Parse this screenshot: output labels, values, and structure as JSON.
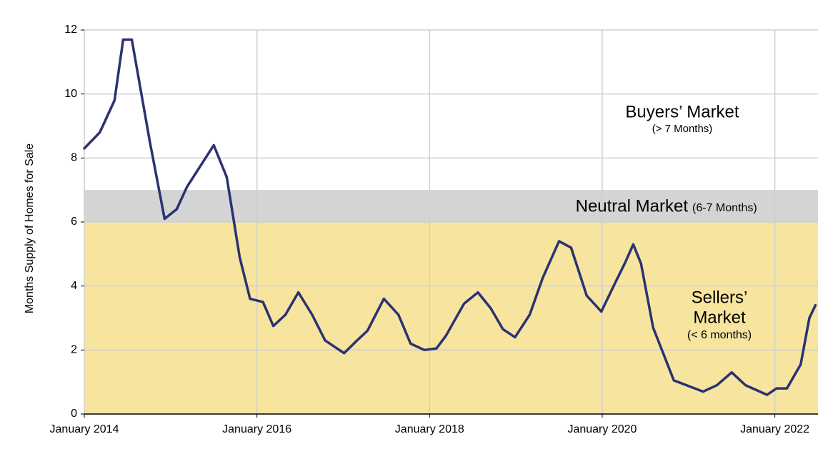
{
  "chart_data": {
    "type": "line",
    "y_label": "Months Supply of Homes for Sale",
    "x": [
      2014.0,
      2014.18,
      2014.35,
      2014.45,
      2014.55,
      2014.76,
      2014.93,
      2015.07,
      2015.19,
      2015.5,
      2015.65,
      2015.8,
      2015.92,
      2016.07,
      2016.19,
      2016.33,
      2016.48,
      2016.64,
      2016.79,
      2017.01,
      2017.16,
      2017.28,
      2017.47,
      2017.64,
      2017.78,
      2017.94,
      2018.08,
      2018.19,
      2018.4,
      2018.56,
      2018.71,
      2018.85,
      2018.99,
      2019.16,
      2019.31,
      2019.5,
      2019.64,
      2019.82,
      2019.99,
      2020.15,
      2020.26,
      2020.36,
      2020.45,
      2020.59,
      2020.83,
      2021.17,
      2021.33,
      2021.5,
      2021.66,
      2021.91,
      2022.02,
      2022.14,
      2022.3,
      2022.4,
      2022.47
    ],
    "series": [
      {
        "color": "#2b3270",
        "values": [
          8.3,
          8.8,
          9.8,
          11.7,
          11.7,
          8.5,
          6.1,
          6.4,
          7.1,
          8.4,
          7.4,
          4.9,
          3.6,
          3.5,
          2.75,
          3.1,
          3.8,
          3.1,
          2.3,
          1.9,
          2.3,
          2.6,
          3.6,
          3.1,
          2.2,
          2.0,
          2.05,
          2.45,
          3.45,
          3.8,
          3.3,
          2.65,
          2.4,
          3.1,
          4.25,
          5.4,
          5.2,
          3.7,
          3.2,
          4.1,
          4.7,
          5.3,
          4.7,
          2.7,
          1.05,
          0.7,
          0.9,
          1.3,
          0.9,
          0.6,
          0.8,
          0.8,
          1.55,
          3.0,
          3.4
        ]
      }
    ],
    "xlim": [
      2014.0,
      2022.5
    ],
    "xticks": [
      {
        "value": 2014,
        "label": "January 2014"
      },
      {
        "value": 2016,
        "label": "January 2016"
      },
      {
        "value": 2018,
        "label": "January 2018"
      },
      {
        "value": 2020,
        "label": "January 2020"
      },
      {
        "value": 2022,
        "label": "January 2022"
      }
    ],
    "ylim": [
      0,
      12
    ],
    "yticks": [
      0,
      2,
      4,
      6,
      8,
      10,
      12
    ],
    "grid": true,
    "bands": [
      {
        "from": 6,
        "to": 7,
        "color": "#d4d4d4",
        "label": [
          "Neutral Market"
        ],
        "sublabel": "(6-7 Months)"
      },
      {
        "from": 0,
        "to": 6,
        "color": "#f7e59f",
        "label": [
          "Sellers’",
          "Market"
        ],
        "sublabel": "(< 6 months)"
      }
    ],
    "annotation": {
      "label": "Buyers’ Market",
      "sublabel": "(> 7 Months)"
    }
  }
}
